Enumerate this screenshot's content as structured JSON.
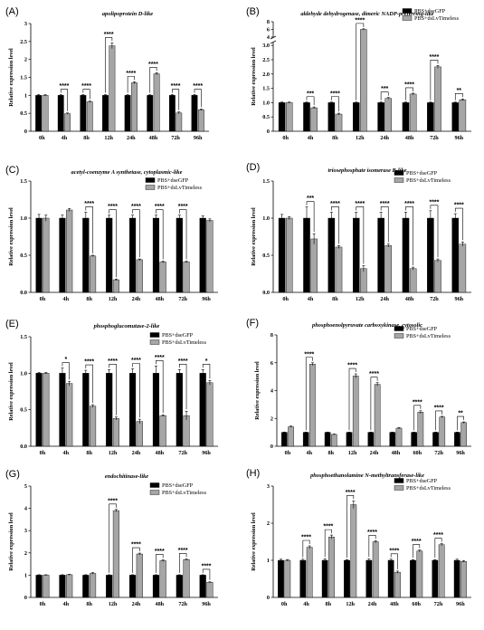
{
  "colors": {
    "control": "#000000",
    "treatment": "#a6a6a6"
  },
  "chart_data": [
    {
      "type": "bar",
      "letter": "(A)",
      "title": "apolipoprotein D-like",
      "ylabel": "Relative expression level",
      "categories": [
        "0h",
        "4h",
        "8h",
        "12h",
        "24h",
        "48h",
        "72h",
        "96h"
      ],
      "series": [
        {
          "name": "PBS+dseGFP",
          "values": [
            1,
            1,
            1,
            1,
            1,
            1,
            1,
            1
          ],
          "err": [
            0.02,
            0.02,
            0.02,
            0.02,
            0.02,
            0.02,
            0.02,
            0.02
          ]
        },
        {
          "name": "PBS+dsLvTimeless",
          "values": [
            1,
            0.49,
            0.82,
            2.38,
            1.35,
            1.6,
            0.51,
            0.6
          ],
          "err": [
            0.02,
            0.02,
            0.02,
            0.08,
            0.03,
            0.03,
            0.03,
            0.02
          ]
        }
      ],
      "yticks": [
        "0",
        "0.5",
        "1",
        "1.5",
        "2",
        "2.5",
        "3"
      ],
      "ylim": [
        0,
        3
      ],
      "sig": [
        "",
        "****",
        "****",
        "****",
        "****",
        "****",
        "****",
        "****"
      ]
    },
    {
      "type": "bar",
      "letter": "(B)",
      "title": "aldehyde dehydrogenase, dimeric NADP-preferring-like",
      "ylabel": "Relative expression level",
      "categories": [
        "0h",
        "4h",
        "8h",
        "12h",
        "24h",
        "48h",
        "72h",
        "96h"
      ],
      "series": [
        {
          "name": "PBS+dseGFP",
          "values": [
            1,
            1,
            1,
            1,
            1,
            1,
            1,
            1
          ],
          "err": [
            0.02,
            0.02,
            0.02,
            0.02,
            0.02,
            0.02,
            0.02,
            0.02
          ]
        },
        {
          "name": "PBS+dsLvTimeless",
          "values": [
            1,
            0.82,
            0.6,
            6,
            1.15,
            1.3,
            2.25,
            1.1
          ],
          "err": [
            0.02,
            0.03,
            0.03,
            0.15,
            0.03,
            0.03,
            0.05,
            0.03
          ]
        }
      ],
      "yticks": [
        "0",
        "0.5",
        "1.0",
        "1.5",
        "2.0",
        "2.5",
        "3.0"
      ],
      "ytick_break_labels": [
        "4",
        "6",
        "8"
      ],
      "ylim_lower": [
        0,
        3.1
      ],
      "ylim_upper": [
        4,
        8
      ],
      "sig": [
        "",
        "***",
        "****",
        "****",
        "***",
        "****",
        "****",
        "**"
      ]
    },
    {
      "type": "bar",
      "letter": "(C)",
      "title": "acetyl-coenzyme A synthetase, cytoplasmic-like",
      "ylabel": "Relative expression level",
      "categories": [
        "0h",
        "4h",
        "8h",
        "12h",
        "24h",
        "48h",
        "72h",
        "96h"
      ],
      "series": [
        {
          "name": "PBS+dseGFP",
          "values": [
            1,
            1,
            1,
            1,
            1,
            1,
            1,
            1
          ],
          "err": [
            0.05,
            0.04,
            0.08,
            0.04,
            0.04,
            0.04,
            0.04,
            0.03
          ]
        },
        {
          "name": "PBS+dsLvTimeless",
          "values": [
            1,
            1.11,
            0.49,
            0.17,
            0.44,
            0.41,
            0.41,
            0.97
          ],
          "err": [
            0.04,
            0.02,
            0.01,
            0.01,
            0.01,
            0.01,
            0.01,
            0.02
          ]
        }
      ],
      "yticks": [
        "0.0",
        "0.5",
        "1.0",
        "1.5"
      ],
      "ylim": [
        0,
        1.5
      ],
      "sig": [
        "",
        "",
        "****",
        "****",
        "****",
        "****",
        "****",
        ""
      ]
    },
    {
      "type": "bar",
      "letter": "(D)",
      "title": "triosephosphate isomerase B-like",
      "ylabel": "Relative expression level",
      "categories": [
        "0h",
        "4h",
        "8h",
        "12h",
        "24h",
        "48h",
        "72h",
        "96h"
      ],
      "series": [
        {
          "name": "PBS+dseGFP",
          "values": [
            1,
            1,
            1,
            1,
            1,
            1,
            1,
            1
          ],
          "err": [
            0.05,
            0.15,
            0.08,
            0.08,
            0.08,
            0.08,
            0.1,
            0.06
          ]
        },
        {
          "name": "PBS+dsLvTimeless",
          "values": [
            1,
            0.72,
            0.61,
            0.32,
            0.63,
            0.32,
            0.43,
            0.65
          ],
          "err": [
            0.02,
            0.07,
            0.02,
            0.04,
            0.02,
            0.02,
            0.02,
            0.03
          ]
        }
      ],
      "yticks": [
        "0.0",
        "0.5",
        "1.0",
        "1.5"
      ],
      "ylim": [
        0,
        1.5
      ],
      "sig": [
        "",
        "***",
        "****",
        "****",
        "****",
        "****",
        "****",
        "****"
      ]
    },
    {
      "type": "bar",
      "letter": "(E)",
      "title": "phosphoglucomutase-2-like",
      "ylabel": "Relative expression level",
      "categories": [
        "0h",
        "4h",
        "8h",
        "12h",
        "24h",
        "48h",
        "72h",
        "96h"
      ],
      "series": [
        {
          "name": "PBS+dseGFP",
          "values": [
            1,
            1,
            1,
            1,
            1,
            1,
            1,
            1
          ],
          "err": [
            0.01,
            0.07,
            0.04,
            0.05,
            0.06,
            0.1,
            0.05,
            0.05
          ]
        },
        {
          "name": "PBS+dsLvTimeless",
          "values": [
            1,
            0.86,
            0.55,
            0.38,
            0.34,
            0.42,
            0.42,
            0.87
          ],
          "err": [
            0.01,
            0.03,
            0.02,
            0.02,
            0.03,
            0.01,
            0.06,
            0.03
          ]
        }
      ],
      "yticks": [
        "0.0",
        "0.5",
        "1.0",
        "1.5"
      ],
      "ylim": [
        0,
        1.5
      ],
      "sig": [
        "",
        "*",
        "****",
        "****",
        "****",
        "****",
        "****",
        "*"
      ]
    },
    {
      "type": "bar",
      "letter": "(F)",
      "title": "phosphoenolpyruvate carboxykinase, cytosolic",
      "ylabel": "Relative expression level",
      "categories": [
        "0h",
        "4h",
        "8h",
        "12h",
        "24h",
        "48h",
        "60h",
        "72h",
        "96h"
      ],
      "series": [
        {
          "name": "PBS+dseGFP",
          "values": [
            1,
            1,
            1,
            1,
            1,
            1,
            1,
            1,
            1
          ],
          "err": [
            0.02,
            0.02,
            0.02,
            0.02,
            0.02,
            0.02,
            0.02,
            0.02,
            0.02
          ]
        },
        {
          "name": "PBS+dsLvTimeless",
          "values": [
            1.4,
            5.9,
            0.85,
            5.05,
            4.45,
            1.3,
            2.45,
            2.1,
            1.7
          ],
          "err": [
            0.05,
            0.1,
            0.03,
            0.15,
            0.12,
            0.05,
            0.1,
            0.05,
            0.05
          ]
        }
      ],
      "yticks": [
        "0",
        "2",
        "4",
        "6",
        "8"
      ],
      "ylim": [
        0,
        8
      ],
      "sig": [
        "",
        "****",
        "",
        "****",
        "****",
        "",
        "****",
        "****",
        "**"
      ]
    },
    {
      "type": "bar",
      "letter": "(G)",
      "title": "endochitinase-like",
      "ylabel": "Relative expression level",
      "categories": [
        "0h",
        "4h",
        "8h",
        "12h",
        "24h",
        "48h",
        "72h",
        "96h"
      ],
      "series": [
        {
          "name": "PBS+dseGFP",
          "values": [
            1,
            1,
            1,
            1,
            1,
            1,
            1,
            1
          ],
          "err": [
            0.02,
            0.02,
            0.02,
            0.02,
            0.02,
            0.02,
            0.02,
            0.02
          ]
        },
        {
          "name": "PBS+dsLvTimeless",
          "values": [
            1,
            1.02,
            1.08,
            3.9,
            1.95,
            1.65,
            1.7,
            0.68
          ],
          "err": [
            0.02,
            0.02,
            0.04,
            0.05,
            0.04,
            0.04,
            0.03,
            0.02
          ]
        }
      ],
      "yticks": [
        "0",
        "1",
        "2",
        "3",
        "4",
        "5"
      ],
      "ylim": [
        0,
        5
      ],
      "sig": [
        "",
        "",
        "",
        "****",
        "****",
        "****",
        "****",
        "****"
      ]
    },
    {
      "type": "bar",
      "letter": "(H)",
      "title": "phosphoethanolamine N-methyltransferase-like",
      "ylabel": "Relative expression level",
      "categories": [
        "0h",
        "4h",
        "8h",
        "12h",
        "24h",
        "48h",
        "60h",
        "72h",
        "96h"
      ],
      "series": [
        {
          "name": "PBS+dseGFP",
          "values": [
            1,
            1,
            1,
            1,
            1,
            1,
            1,
            1,
            1
          ],
          "err": [
            0.03,
            0.03,
            0.04,
            0.02,
            0.04,
            0.03,
            0.02,
            0.02,
            0.03
          ]
        },
        {
          "name": "PBS+dsLvTimeless",
          "values": [
            1,
            1.35,
            1.63,
            2.5,
            1.5,
            0.68,
            1.25,
            1.42,
            0.97
          ],
          "err": [
            0.02,
            0.04,
            0.05,
            0.1,
            0.03,
            0.03,
            0.03,
            0.03,
            0.02
          ]
        }
      ],
      "yticks": [
        "0",
        "1",
        "2",
        "3"
      ],
      "ylim": [
        0,
        3
      ],
      "sig": [
        "",
        "****",
        "****",
        "****",
        "****",
        "****",
        "****",
        "****",
        ""
      ]
    }
  ]
}
